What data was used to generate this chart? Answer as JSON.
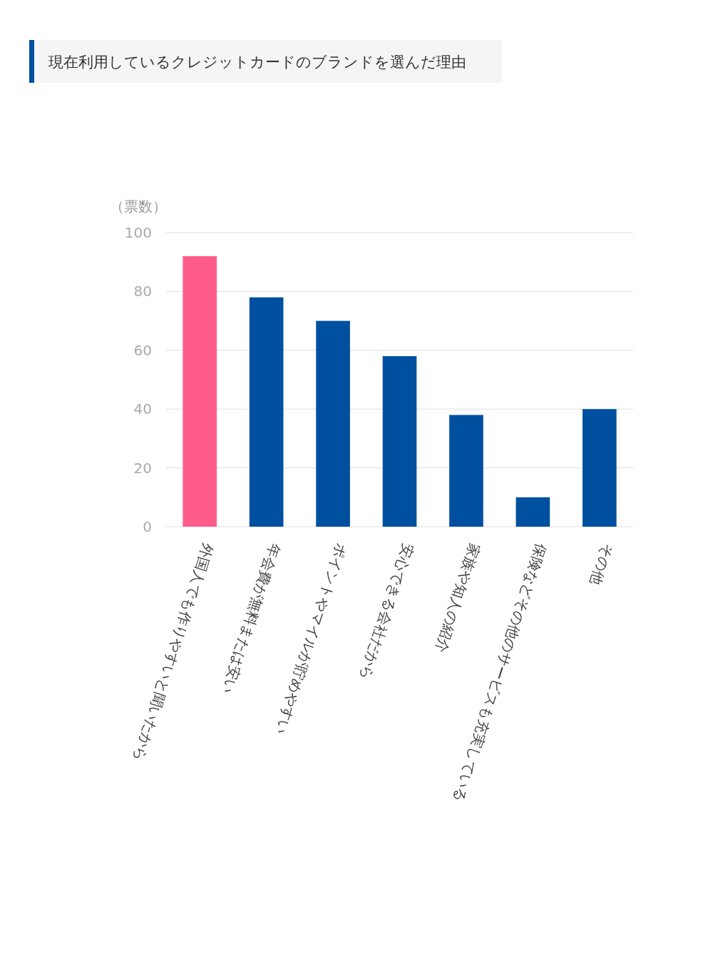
{
  "chart_data": {
    "type": "bar",
    "title": "現在利用しているクレジットカードのブランドを選んだ理由",
    "ylabel": "（票数）",
    "categories": [
      "外国人でも作りやすいと聞いたから",
      "年会費が無料または安い",
      "ポイントやマイルが貯めやすい",
      "安心できる会社だから",
      "家族や知人の紹介",
      "保険などその他のサービスも充実している",
      "その他"
    ],
    "values": [
      92,
      78,
      70,
      58,
      38,
      10,
      40
    ],
    "colors": [
      "#ff5c8a",
      "#0050a0",
      "#0050a0",
      "#0050a0",
      "#0050a0",
      "#0050a0",
      "#0050a0"
    ],
    "ylim": [
      0,
      100
    ],
    "yticks": [
      0,
      20,
      40,
      60,
      80,
      100
    ],
    "grid": "y"
  }
}
